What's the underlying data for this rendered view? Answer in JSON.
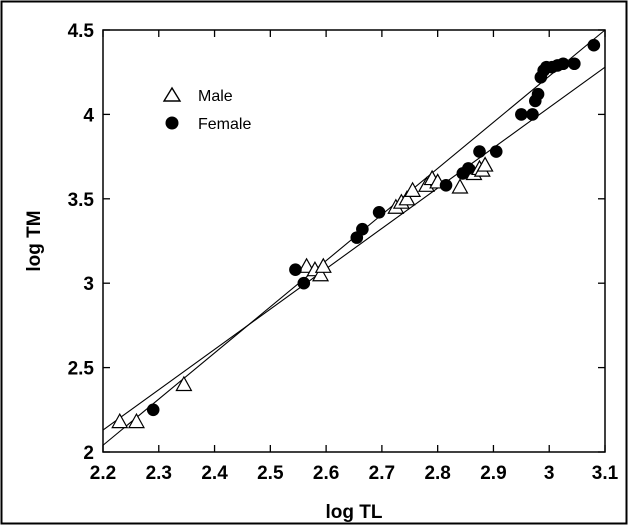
{
  "chart_data": {
    "type": "scatter",
    "title": "",
    "xlabel": "log TL",
    "ylabel": "log TM",
    "xlim": [
      2.2,
      3.1
    ],
    "ylim": [
      2.0,
      4.5
    ],
    "x_ticks": [
      "2.2",
      "2.3",
      "2.4",
      "2.5",
      "2.6",
      "2.7",
      "2.8",
      "2.9",
      "3",
      "3.1"
    ],
    "y_ticks": [
      "2",
      "2.5",
      "3",
      "3.5",
      "4",
      "4.5"
    ],
    "grid": false,
    "legend_position": "top-left",
    "series": [
      {
        "name": "Male",
        "marker": "open-triangle",
        "color": "#000000",
        "x": [
          2.23,
          2.26,
          2.345,
          2.565,
          2.58,
          2.59,
          2.595,
          2.725,
          2.735,
          2.745,
          2.755,
          2.78,
          2.79,
          2.8,
          2.84,
          2.865,
          2.875,
          2.88,
          2.885
        ],
        "y": [
          2.18,
          2.18,
          2.4,
          3.1,
          3.08,
          3.05,
          3.1,
          3.45,
          3.48,
          3.5,
          3.55,
          3.58,
          3.62,
          3.6,
          3.57,
          3.65,
          3.68,
          3.67,
          3.7
        ]
      },
      {
        "name": "Female",
        "marker": "filled-circle",
        "color": "#000000",
        "x": [
          2.29,
          2.545,
          2.56,
          2.655,
          2.665,
          2.695,
          2.815,
          2.845,
          2.855,
          2.875,
          2.905,
          2.95,
          2.97,
          2.975,
          2.98,
          2.985,
          2.99,
          2.995,
          3.005,
          3.015,
          3.025,
          3.045,
          3.08
        ],
        "y": [
          2.25,
          3.08,
          3.0,
          3.27,
          3.32,
          3.42,
          3.58,
          3.65,
          3.68,
          3.78,
          3.78,
          4.0,
          4.0,
          4.08,
          4.12,
          4.22,
          4.26,
          4.28,
          4.28,
          4.29,
          4.3,
          4.3,
          4.41
        ]
      }
    ],
    "fit_lines": [
      {
        "x": [
          2.2,
          3.1
        ],
        "y": [
          2.04,
          4.5
        ]
      },
      {
        "x": [
          2.2,
          3.1
        ],
        "y": [
          2.13,
          4.28
        ]
      }
    ]
  }
}
